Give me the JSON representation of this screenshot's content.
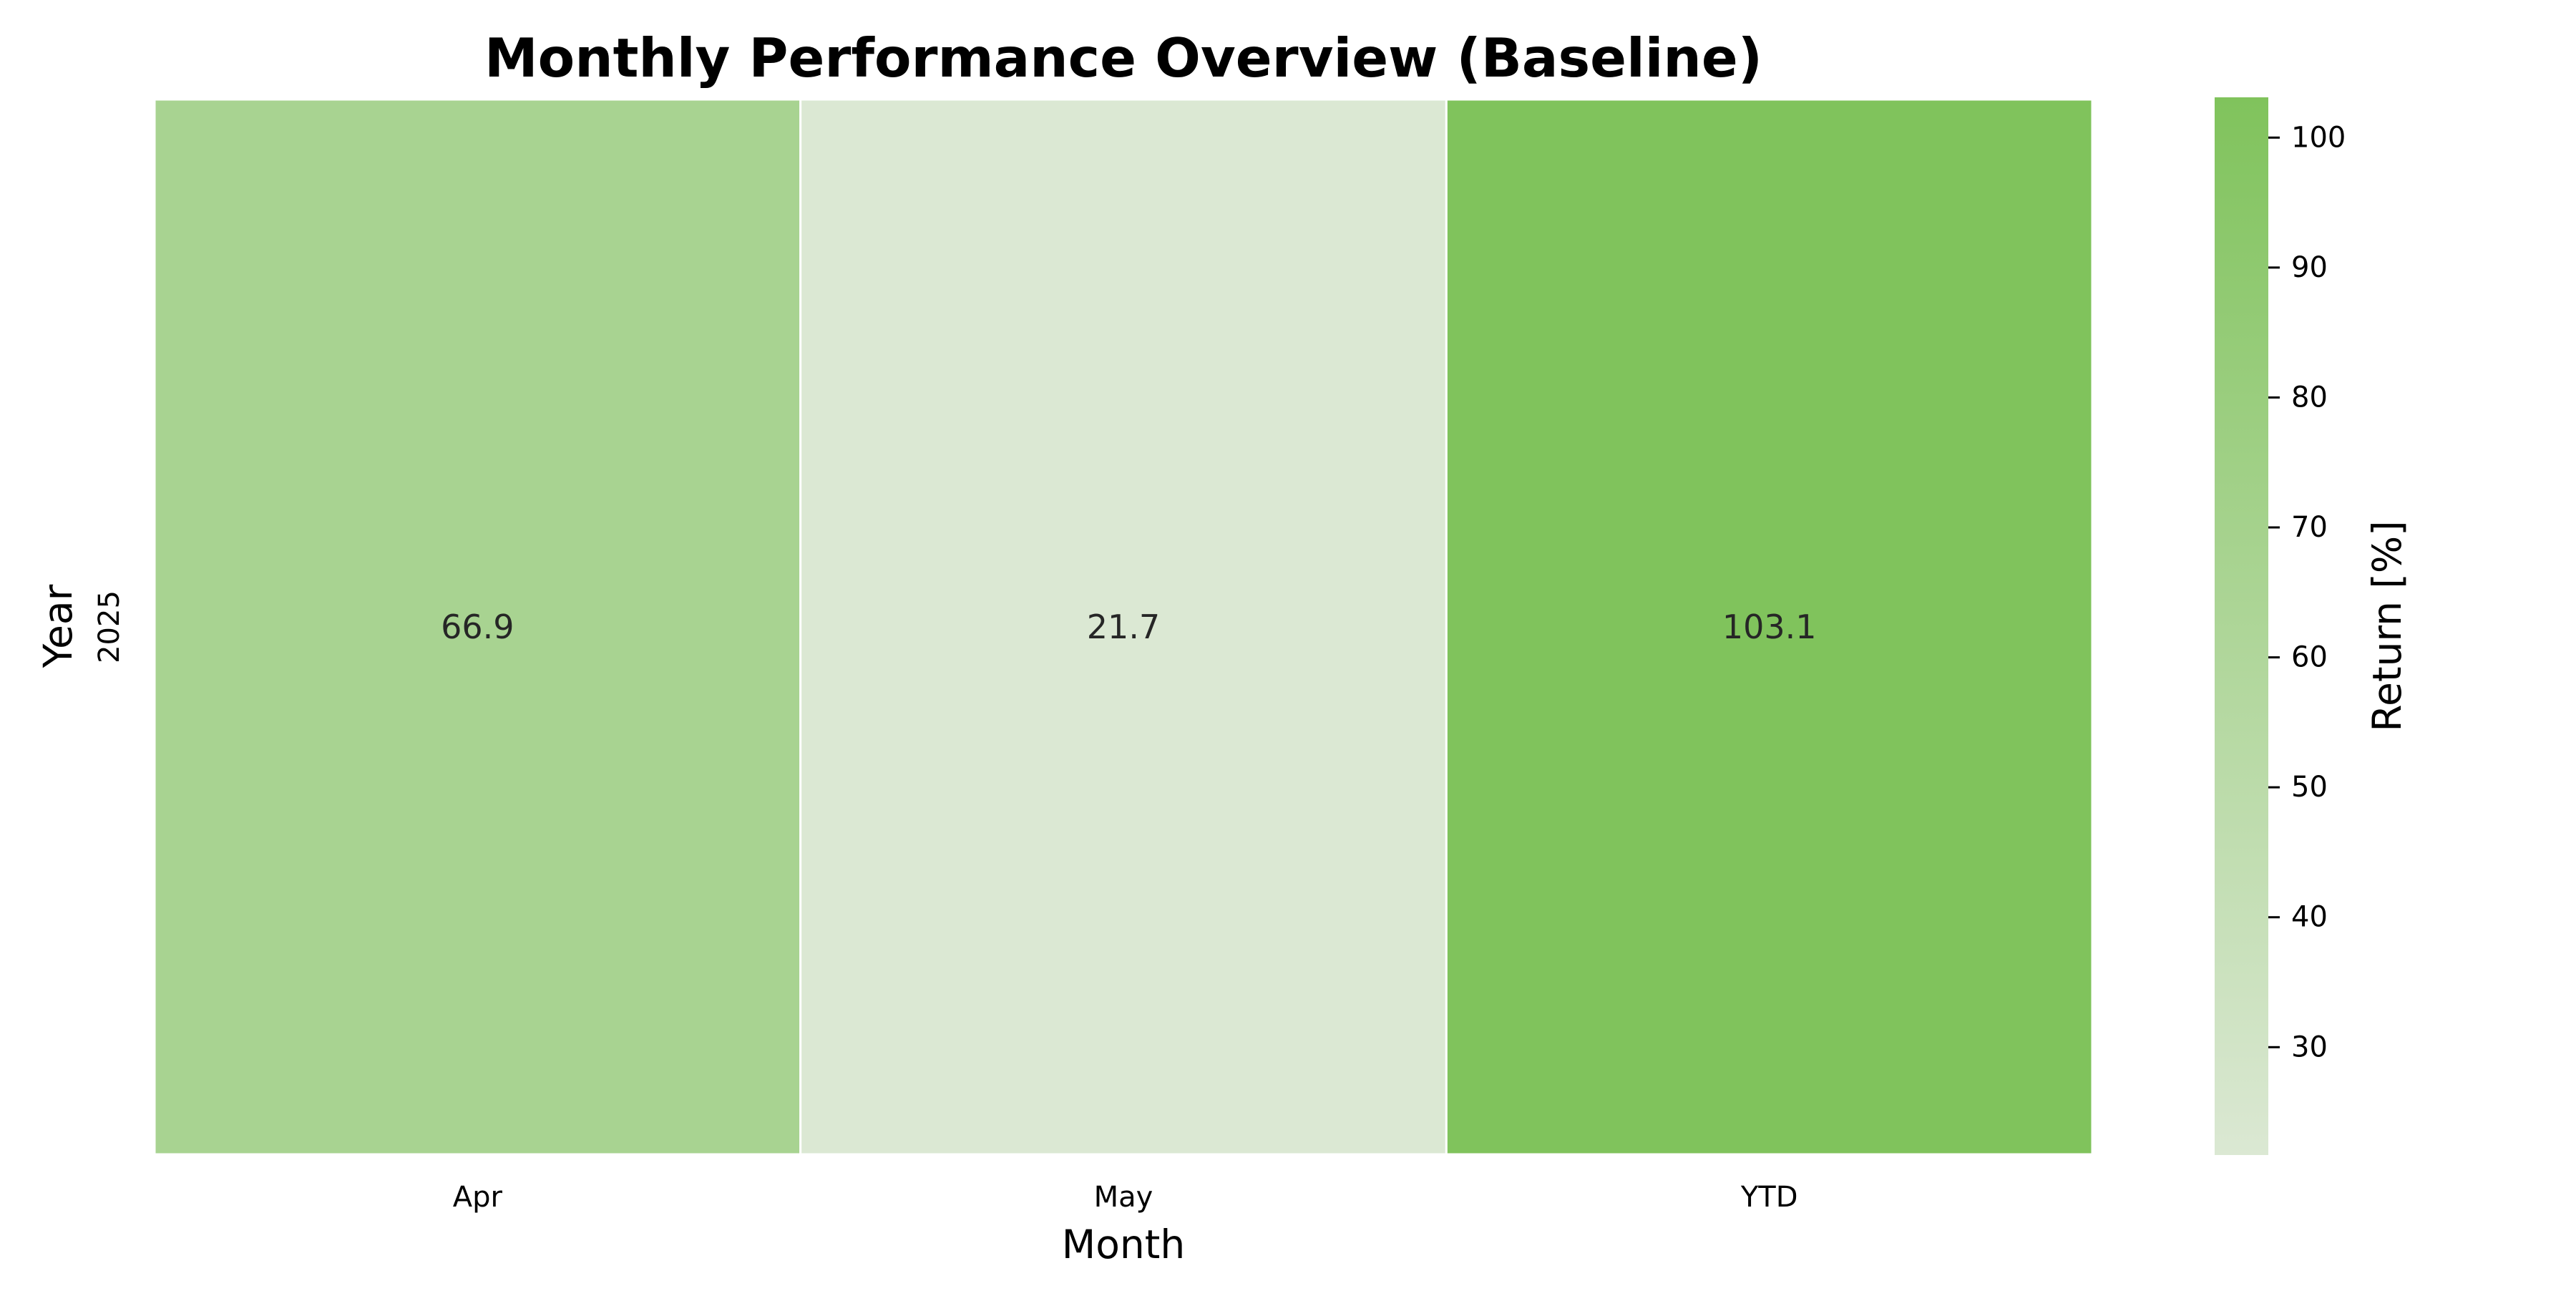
{
  "chart_data": {
    "type": "heatmap",
    "title": "Monthly Performance Overview (Baseline)",
    "xlabel": "Month",
    "ylabel": "Year",
    "x_categories": [
      "Apr",
      "May",
      "YTD"
    ],
    "y_categories": [
      "2025"
    ],
    "values": [
      [
        66.9,
        21.7,
        103.1
      ]
    ],
    "annotations": true,
    "colorbar": {
      "label": "Return [%]",
      "range": [
        21.7,
        103.1
      ],
      "ticks": [
        30,
        40,
        50,
        60,
        70,
        80,
        90,
        100
      ]
    },
    "colors": {
      "low": "#dbe8d3",
      "high": "#80c35c",
      "text": "#262626"
    }
  }
}
